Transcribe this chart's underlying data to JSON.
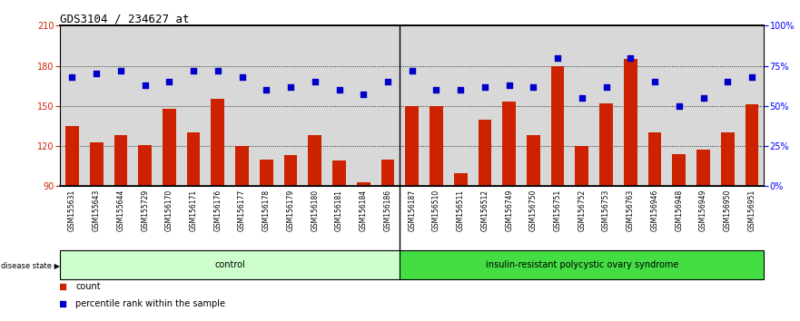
{
  "title": "GDS3104 / 234627_at",
  "categories": [
    "GSM155631",
    "GSM155643",
    "GSM155644",
    "GSM155729",
    "GSM156170",
    "GSM156171",
    "GSM156176",
    "GSM156177",
    "GSM156178",
    "GSM156179",
    "GSM156180",
    "GSM156181",
    "GSM156184",
    "GSM156186",
    "GSM156187",
    "GSM156510",
    "GSM156511",
    "GSM156512",
    "GSM156749",
    "GSM156750",
    "GSM156751",
    "GSM156752",
    "GSM156753",
    "GSM156763",
    "GSM156946",
    "GSM156948",
    "GSM156949",
    "GSM156950",
    "GSM156951"
  ],
  "bar_values": [
    135,
    123,
    128,
    121,
    148,
    130,
    155,
    120,
    110,
    113,
    128,
    109,
    93,
    110,
    150,
    150,
    100,
    140,
    153,
    128,
    180,
    120,
    152,
    185,
    130,
    114,
    117,
    130,
    151
  ],
  "dot_values": [
    68,
    70,
    72,
    63,
    65,
    72,
    72,
    68,
    60,
    62,
    65,
    60,
    57,
    65,
    72,
    60,
    60,
    62,
    63,
    62,
    80,
    55,
    62,
    80,
    65,
    50,
    55,
    65,
    68
  ],
  "control_count": 14,
  "bar_color": "#cc2200",
  "dot_color": "#0000cc",
  "bar_bottom": 90,
  "ylim_left": [
    90,
    210
  ],
  "ylim_right": [
    0,
    100
  ],
  "yticks_left": [
    90,
    120,
    150,
    180,
    210
  ],
  "yticks_right": [
    0,
    25,
    50,
    75,
    100
  ],
  "ytick_labels_right": [
    "0%",
    "25%",
    "50%",
    "75%",
    "100%"
  ],
  "hlines": [
    120,
    150,
    180
  ],
  "control_label": "control",
  "disease_label": "insulin-resistant polycystic ovary syndrome",
  "disease_state_label": "disease state",
  "legend_bar": "count",
  "legend_dot": "percentile rank within the sample",
  "bg_color_plot": "#d8d8d8",
  "bg_color_control": "#ccffcc",
  "bg_color_disease": "#44dd44",
  "title_fontsize": 9,
  "tick_fontsize": 7,
  "label_fontsize": 8
}
